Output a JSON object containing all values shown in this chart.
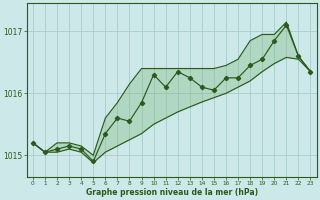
{
  "xlabel": "Graphe pression niveau de la mer (hPa)",
  "bg_color": "#cce8e8",
  "grid_color": "#aacccc",
  "line_color": "#2d5a1b",
  "fill_color": "#7ab87a",
  "xlim": [
    -0.5,
    23.5
  ],
  "ylim": [
    1014.65,
    1017.45
  ],
  "yticks": [
    1015,
    1016,
    1017
  ],
  "xticks": [
    0,
    1,
    2,
    3,
    4,
    5,
    6,
    7,
    8,
    9,
    10,
    11,
    12,
    13,
    14,
    15,
    16,
    17,
    18,
    19,
    20,
    21,
    22,
    23
  ],
  "x_data": [
    0,
    1,
    2,
    3,
    4,
    5,
    6,
    7,
    8,
    9,
    10,
    11,
    12,
    13,
    14,
    15,
    16,
    17,
    18,
    19,
    20,
    21,
    22,
    23
  ],
  "y_main": [
    1015.2,
    1015.05,
    1015.1,
    1015.15,
    1015.1,
    1014.9,
    1015.35,
    1015.6,
    1015.55,
    1015.85,
    1016.3,
    1016.1,
    1016.35,
    1016.25,
    1016.1,
    1016.05,
    1016.25,
    1016.25,
    1016.45,
    1016.55,
    1016.85,
    1017.1,
    1016.6,
    1016.35
  ],
  "y_upper": [
    1015.2,
    1015.05,
    1015.2,
    1015.2,
    1015.15,
    1015.0,
    1015.6,
    1015.85,
    1016.15,
    1016.4,
    1016.4,
    1016.4,
    1016.4,
    1016.4,
    1016.4,
    1016.4,
    1016.45,
    1016.55,
    1016.85,
    1016.95,
    1016.95,
    1017.15,
    1016.6,
    1016.35
  ],
  "y_lower": [
    1015.2,
    1015.05,
    1015.05,
    1015.1,
    1015.05,
    1014.88,
    1015.05,
    1015.15,
    1015.25,
    1015.35,
    1015.5,
    1015.6,
    1015.7,
    1015.78,
    1015.86,
    1015.93,
    1016.0,
    1016.1,
    1016.2,
    1016.35,
    1016.48,
    1016.58,
    1016.55,
    1016.35
  ]
}
